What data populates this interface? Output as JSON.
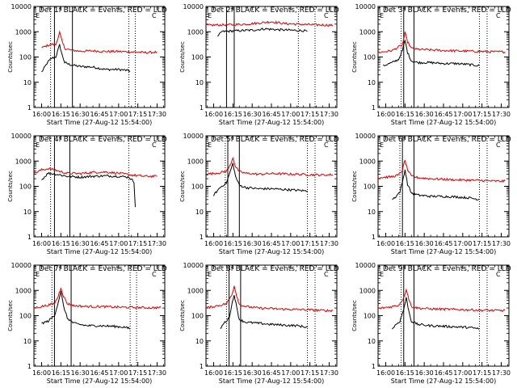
{
  "figure": {
    "ylabel": "Counts/sec",
    "xlabel": "Start Time (27-Aug-12 15:54:00)",
    "colors": {
      "events": "#000000",
      "lld": "#dd0000",
      "frame": "#000000",
      "background": "#ffffff"
    }
  },
  "chart_data": [
    {
      "type": "line",
      "title": "Det 1f BLACK = Events, RED = LLD",
      "xlabel": "Start Time (27-Aug-12 15:54:00)",
      "ylabel": "Counts/sec",
      "x_ticks": [
        "16:00",
        "16:15",
        "16:30",
        "16:45",
        "17:00",
        "17:15",
        "17:30"
      ],
      "y_ticks": [
        "1",
        "10",
        "100",
        "1000",
        "10000"
      ],
      "y_scale": "log",
      "ylim": [
        1,
        10000
      ],
      "xlim": [
        "15:54",
        "17:36"
      ],
      "corner_labels": [
        "E",
        "C"
      ],
      "solid_vlines": [
        "16:10",
        "16:24"
      ],
      "dotted_vlines": [
        "16:07",
        "17:08",
        "17:13"
      ],
      "series": [
        {
          "name": "Events",
          "color": "#000000",
          "x": [
            "16:00",
            "16:05",
            "16:08",
            "16:11",
            "16:14",
            "16:16",
            "16:18",
            "16:22",
            "16:30",
            "16:40",
            "16:50",
            "17:00",
            "17:05",
            "17:09"
          ],
          "values": [
            25,
            65,
            90,
            100,
            300,
            120,
            60,
            50,
            42,
            40,
            32,
            32,
            30,
            28
          ]
        },
        {
          "name": "LLD",
          "color": "#dd0000",
          "x": [
            "16:00",
            "16:05",
            "16:08",
            "16:11",
            "16:14",
            "16:16",
            "16:18",
            "16:22",
            "16:30",
            "16:40",
            "16:50",
            "17:00",
            "17:10",
            "17:20",
            "17:30"
          ],
          "values": [
            230,
            290,
            320,
            300,
            950,
            400,
            220,
            190,
            170,
            175,
            165,
            165,
            160,
            150,
            155
          ]
        }
      ]
    },
    {
      "type": "line",
      "title": "Det 2f BLACK = Events, RED = LLD",
      "xlabel": "Start Time (27-Aug-12 15:54:00)",
      "ylabel": "Counts/sec",
      "x_ticks": [
        "16:00",
        "16:15",
        "16:30",
        "16:45",
        "17:00",
        "17:15",
        "17:30"
      ],
      "y_ticks": [
        "1",
        "10",
        "100",
        "1000",
        "10000"
      ],
      "y_scale": "log",
      "ylim": [
        1,
        10000
      ],
      "xlim": [
        "15:54",
        "17:36"
      ],
      "corner_labels": [
        "E",
        "C"
      ],
      "solid_vlines": [
        "16:10",
        "16:16"
      ],
      "dotted_vlines": [
        "17:06",
        "17:19"
      ],
      "series": [
        {
          "name": "Events",
          "color": "#000000",
          "x": [
            "16:03",
            "16:06",
            "16:12",
            "16:20",
            "16:30",
            "16:40",
            "16:45",
            "16:50",
            "17:00",
            "17:10",
            "17:13"
          ],
          "values": [
            600,
            1000,
            1050,
            1100,
            1150,
            1300,
            1250,
            1200,
            1150,
            1100,
            1050
          ]
        },
        {
          "name": "LLD",
          "color": "#dd0000",
          "x": [
            "15:54",
            "16:05",
            "16:15",
            "16:25",
            "16:35",
            "16:45",
            "16:55",
            "17:05",
            "17:15",
            "17:25",
            "17:33"
          ],
          "values": [
            1800,
            1850,
            1900,
            2000,
            2200,
            2500,
            2100,
            2000,
            1900,
            1850,
            1800
          ]
        }
      ]
    },
    {
      "type": "line",
      "title": "Det 3f BLACK = Events, RED = LLD",
      "xlabel": "Start Time (27-Aug-12 15:54:00)",
      "ylabel": "Counts/sec",
      "x_ticks": [
        "16:00",
        "16:15",
        "16:30",
        "16:45",
        "17:00",
        "17:15",
        "17:30"
      ],
      "y_ticks": [
        "1",
        "10",
        "100",
        "1000",
        "10000"
      ],
      "y_scale": "log",
      "ylim": [
        1,
        10000
      ],
      "xlim": [
        "15:54",
        "17:36"
      ],
      "corner_labels": [
        "E",
        "C"
      ],
      "solid_vlines": [
        "16:14",
        "16:22"
      ],
      "dotted_vlines": [
        "16:12",
        "17:13",
        "17:19"
      ],
      "series": [
        {
          "name": "Events",
          "color": "#000000",
          "x": [
            "15:58",
            "16:05",
            "16:10",
            "16:13",
            "16:15",
            "16:17",
            "16:20",
            "16:25",
            "16:35",
            "16:45",
            "16:55",
            "17:05",
            "17:13"
          ],
          "values": [
            45,
            60,
            80,
            180,
            450,
            150,
            70,
            60,
            60,
            55,
            55,
            50,
            45
          ]
        },
        {
          "name": "LLD",
          "color": "#dd0000",
          "x": [
            "15:54",
            "16:05",
            "16:10",
            "16:13",
            "16:15",
            "16:17",
            "16:20",
            "16:25",
            "16:35",
            "16:45",
            "16:55",
            "17:05",
            "17:15",
            "17:25",
            "17:33"
          ],
          "values": [
            150,
            180,
            250,
            300,
            900,
            400,
            220,
            200,
            190,
            180,
            175,
            170,
            165,
            160,
            160
          ]
        }
      ]
    },
    {
      "type": "line",
      "title": "Det 4f BLACK = Events, RED = LLD",
      "xlabel": "Start Time (27-Aug-12 15:54:00)",
      "ylabel": "Counts/sec",
      "x_ticks": [
        "16:00",
        "16:15",
        "16:30",
        "16:45",
        "17:00",
        "17:15",
        "17:30"
      ],
      "y_ticks": [
        "1",
        "10",
        "100",
        "1000",
        "10000"
      ],
      "y_scale": "log",
      "ylim": [
        1,
        10000
      ],
      "xlim": [
        "15:54",
        "17:36"
      ],
      "corner_labels": [
        "E",
        "C"
      ],
      "solid_vlines": [
        "16:10",
        "16:22"
      ],
      "dotted_vlines": [
        "16:07",
        "17:08"
      ],
      "series": [
        {
          "name": "Events",
          "color": "#000000",
          "x": [
            "16:00",
            "16:05",
            "16:10",
            "16:15",
            "16:20",
            "16:30",
            "16:40",
            "16:50",
            "17:00",
            "17:08",
            "17:12",
            "17:13"
          ],
          "values": [
            180,
            330,
            310,
            280,
            250,
            230,
            250,
            260,
            250,
            230,
            150,
            15
          ]
        },
        {
          "name": "LLD",
          "color": "#dd0000",
          "x": [
            "15:54",
            "16:00",
            "16:05",
            "16:10",
            "16:15",
            "16:20",
            "16:30",
            "16:40",
            "16:50",
            "17:00",
            "17:10",
            "17:20",
            "17:30"
          ],
          "values": [
            320,
            450,
            500,
            450,
            380,
            330,
            320,
            360,
            370,
            330,
            280,
            250,
            250
          ]
        }
      ]
    },
    {
      "type": "line",
      "title": "Det 5f BLACK = Events, RED = LLD",
      "xlabel": "Start Time (27-Aug-12 15:54:00)",
      "ylabel": "Counts/sec",
      "x_ticks": [
        "16:00",
        "16:15",
        "16:30",
        "16:45",
        "17:00",
        "17:15",
        "17:30"
      ],
      "y_ticks": [
        "1",
        "10",
        "100",
        "1000",
        "10000"
      ],
      "y_scale": "log",
      "ylim": [
        1,
        10000
      ],
      "xlim": [
        "15:54",
        "17:36"
      ],
      "corner_labels": [
        "E",
        "C"
      ],
      "solid_vlines": [
        "16:11",
        "16:20"
      ],
      "dotted_vlines": [
        "16:09",
        "17:13",
        "17:19"
      ],
      "series": [
        {
          "name": "Events",
          "color": "#000000",
          "x": [
            "16:00",
            "16:05",
            "16:10",
            "16:13",
            "16:15",
            "16:17",
            "16:20",
            "16:25",
            "16:35",
            "16:45",
            "16:55",
            "17:05",
            "17:13"
          ],
          "values": [
            45,
            90,
            140,
            400,
            800,
            250,
            110,
            90,
            80,
            80,
            75,
            70,
            65
          ]
        },
        {
          "name": "LLD",
          "color": "#dd0000",
          "x": [
            "15:54",
            "16:05",
            "16:10",
            "16:13",
            "16:15",
            "16:17",
            "16:20",
            "16:25",
            "16:35",
            "16:45",
            "16:55",
            "17:05",
            "17:15",
            "17:25",
            "17:33"
          ],
          "values": [
            300,
            350,
            400,
            700,
            1400,
            600,
            380,
            330,
            300,
            320,
            310,
            300,
            290,
            280,
            290
          ]
        }
      ]
    },
    {
      "type": "line",
      "title": "Det 6f BLACK = Events, RED = LLD",
      "xlabel": "Start Time (27-Aug-12 15:54:00)",
      "ylabel": "Counts/sec",
      "x_ticks": [
        "16:00",
        "16:15",
        "16:30",
        "16:45",
        "17:00",
        "17:15",
        "17:30"
      ],
      "y_ticks": [
        "1",
        "10",
        "100",
        "1000",
        "10000"
      ],
      "y_scale": "log",
      "ylim": [
        1,
        10000
      ],
      "xlim": [
        "15:54",
        "17:36"
      ],
      "corner_labels": [
        "E",
        "C"
      ],
      "solid_vlines": [
        "16:13",
        "16:22"
      ],
      "dotted_vlines": [
        "16:11",
        "17:13",
        "17:19"
      ],
      "series": [
        {
          "name": "Events",
          "color": "#000000",
          "x": [
            "16:05",
            "16:08",
            "16:11",
            "16:13",
            "16:15",
            "16:17",
            "16:20",
            "16:25",
            "16:35",
            "16:45",
            "16:55",
            "17:05",
            "17:13"
          ],
          "values": [
            30,
            40,
            60,
            150,
            450,
            120,
            55,
            45,
            40,
            40,
            38,
            35,
            30
          ]
        },
        {
          "name": "LLD",
          "color": "#dd0000",
          "x": [
            "15:54",
            "16:05",
            "16:10",
            "16:13",
            "16:15",
            "16:17",
            "16:20",
            "16:25",
            "16:35",
            "16:45",
            "16:55",
            "17:05",
            "17:15",
            "17:25",
            "17:33"
          ],
          "values": [
            220,
            240,
            280,
            450,
            1050,
            450,
            250,
            220,
            200,
            190,
            180,
            175,
            170,
            160,
            160
          ]
        }
      ]
    },
    {
      "type": "line",
      "title": "Det 7f BLACK = Events, RED = LLD",
      "xlabel": "Start Time (27-Aug-12 15:54:00)",
      "ylabel": "Counts/sec",
      "x_ticks": [
        "16:00",
        "16:15",
        "16:30",
        "16:45",
        "17:00",
        "17:15",
        "17:30"
      ],
      "y_ticks": [
        "1",
        "10",
        "100",
        "1000",
        "10000"
      ],
      "y_scale": "log",
      "ylim": [
        1,
        10000
      ],
      "xlim": [
        "15:54",
        "17:36"
      ],
      "corner_labels": [
        "E",
        "C"
      ],
      "solid_vlines": [
        "16:10",
        "16:23"
      ],
      "dotted_vlines": [
        "16:08",
        "17:09",
        "17:14"
      ],
      "series": [
        {
          "name": "Events",
          "color": "#000000",
          "x": [
            "16:00",
            "16:05",
            "16:10",
            "16:13",
            "16:15",
            "16:17",
            "16:20",
            "16:25",
            "16:35",
            "16:45",
            "16:55",
            "17:05",
            "17:09"
          ],
          "values": [
            50,
            60,
            100,
            350,
            900,
            250,
            80,
            50,
            40,
            40,
            38,
            35,
            30
          ]
        },
        {
          "name": "LLD",
          "color": "#dd0000",
          "x": [
            "15:54",
            "16:05",
            "16:10",
            "16:13",
            "16:15",
            "16:17",
            "16:20",
            "16:25",
            "16:35",
            "16:45",
            "16:55",
            "17:05",
            "17:15",
            "17:25",
            "17:33"
          ],
          "values": [
            200,
            260,
            300,
            600,
            1300,
            600,
            300,
            250,
            230,
            230,
            220,
            215,
            210,
            205,
            210
          ]
        }
      ]
    },
    {
      "type": "line",
      "title": "Det 8f BLACK = Events, RED = LLD",
      "xlabel": "Start Time (27-Aug-12 15:54:00)",
      "ylabel": "Counts/sec",
      "x_ticks": [
        "16:00",
        "16:15",
        "16:30",
        "16:45",
        "17:00",
        "17:15",
        "17:30"
      ],
      "y_ticks": [
        "1",
        "10",
        "100",
        "1000",
        "10000"
      ],
      "y_scale": "log",
      "ylim": [
        1,
        10000
      ],
      "xlim": [
        "15:54",
        "17:36"
      ],
      "corner_labels": [
        "E",
        "C"
      ],
      "solid_vlines": [
        "16:12",
        "16:21"
      ],
      "dotted_vlines": [
        "16:10",
        "17:13",
        "17:19"
      ],
      "series": [
        {
          "name": "Events",
          "color": "#000000",
          "x": [
            "16:05",
            "16:08",
            "16:12",
            "16:14",
            "16:16",
            "16:18",
            "16:20",
            "16:25",
            "16:35",
            "16:45",
            "16:55",
            "17:05",
            "17:13"
          ],
          "values": [
            30,
            50,
            80,
            250,
            700,
            200,
            70,
            55,
            50,
            45,
            42,
            40,
            35
          ]
        },
        {
          "name": "LLD",
          "color": "#dd0000",
          "x": [
            "15:54",
            "16:05",
            "16:10",
            "16:14",
            "16:16",
            "16:18",
            "16:20",
            "16:25",
            "16:35",
            "16:45",
            "16:55",
            "17:05",
            "17:15",
            "17:25",
            "17:33"
          ],
          "values": [
            200,
            260,
            300,
            650,
            1500,
            600,
            280,
            230,
            200,
            190,
            180,
            175,
            170,
            160,
            160
          ]
        }
      ]
    },
    {
      "type": "line",
      "title": "Det 9f BLACK = Events, RED = LLD",
      "xlabel": "Start Time (27-Aug-12 15:54:00)",
      "ylabel": "Counts/sec",
      "x_ticks": [
        "16:00",
        "16:15",
        "16:30",
        "16:45",
        "17:00",
        "17:15",
        "17:30"
      ],
      "y_ticks": [
        "1",
        "10",
        "100",
        "1000",
        "10000"
      ],
      "y_scale": "log",
      "ylim": [
        1,
        10000
      ],
      "xlim": [
        "15:54",
        "17:36"
      ],
      "corner_labels": [
        "E",
        "C"
      ],
      "solid_vlines": [
        "16:14",
        "16:22"
      ],
      "dotted_vlines": [
        "16:12",
        "17:13",
        "17:19"
      ],
      "series": [
        {
          "name": "Events",
          "color": "#000000",
          "x": [
            "16:05",
            "16:08",
            "16:11",
            "16:14",
            "16:16",
            "16:18",
            "16:20",
            "16:25",
            "16:35",
            "16:45",
            "16:55",
            "17:05",
            "17:13"
          ],
          "values": [
            30,
            45,
            60,
            180,
            500,
            150,
            60,
            45,
            40,
            38,
            36,
            34,
            30
          ]
        },
        {
          "name": "LLD",
          "color": "#dd0000",
          "x": [
            "15:54",
            "16:05",
            "16:10",
            "16:14",
            "16:16",
            "16:18",
            "16:20",
            "16:25",
            "16:35",
            "16:45",
            "16:55",
            "17:05",
            "17:15",
            "17:25",
            "17:33"
          ],
          "values": [
            190,
            230,
            260,
            500,
            1150,
            450,
            230,
            200,
            185,
            180,
            175,
            170,
            165,
            160,
            160
          ]
        }
      ]
    }
  ]
}
